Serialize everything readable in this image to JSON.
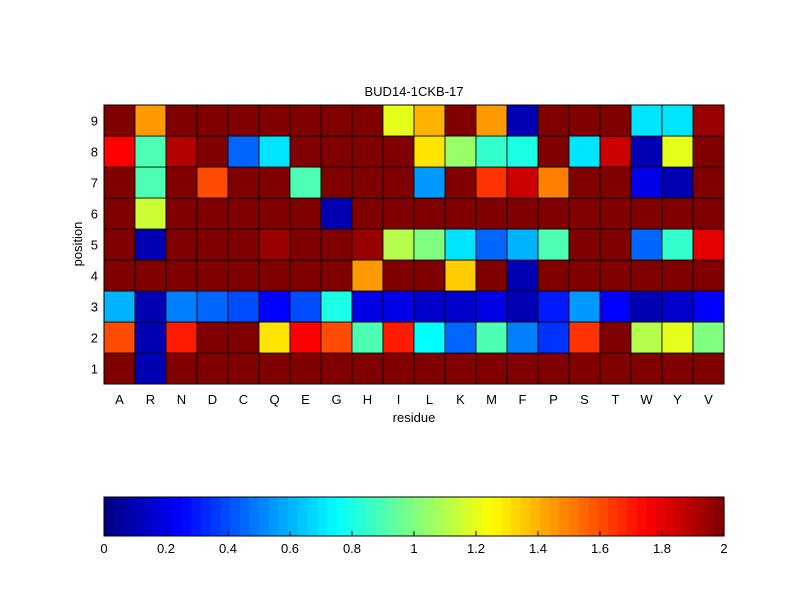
{
  "chart_data": {
    "type": "heatmap",
    "title": "BUD14-1CKB-17",
    "xlabel": "residue",
    "ylabel": "position",
    "x_categories": [
      "A",
      "R",
      "N",
      "D",
      "C",
      "Q",
      "E",
      "G",
      "H",
      "I",
      "L",
      "K",
      "M",
      "F",
      "P",
      "S",
      "T",
      "W",
      "Y",
      "V"
    ],
    "y_categories": [
      "1",
      "2",
      "3",
      "4",
      "5",
      "6",
      "7",
      "8",
      "9"
    ],
    "colormap": "jet",
    "clim": [
      0,
      2
    ],
    "grid": true,
    "colorbar": {
      "location": "bottom",
      "ticks": [
        0,
        0.2,
        0.4,
        0.6,
        0.8,
        1,
        1.2,
        1.4,
        1.6,
        1.8,
        2
      ],
      "tick_labels": [
        "0",
        "0.2",
        "0.4",
        "0.6",
        "0.8",
        "1",
        "1.2",
        "1.4",
        "1.6",
        "1.8",
        "2"
      ]
    },
    "values": [
      [
        2.0,
        0.1,
        2.0,
        2.0,
        2.0,
        2.0,
        2.0,
        2.0,
        2.0,
        2.0,
        2.0,
        2.0,
        2.0,
        2.0,
        2.0,
        2.0,
        2.0,
        2.0,
        2.0,
        2.0
      ],
      [
        1.6,
        0.1,
        1.7,
        2.0,
        2.0,
        1.3,
        1.75,
        1.6,
        0.9,
        1.7,
        0.75,
        0.45,
        0.9,
        0.5,
        0.35,
        1.65,
        2.0,
        1.1,
        1.2,
        1.0
      ],
      [
        0.6,
        0.1,
        0.5,
        0.45,
        0.4,
        0.25,
        0.4,
        0.8,
        0.2,
        0.2,
        0.15,
        0.15,
        0.2,
        0.1,
        0.3,
        0.55,
        0.25,
        0.1,
        0.15,
        0.25
      ],
      [
        2.0,
        2.0,
        2.0,
        2.0,
        2.0,
        2.0,
        2.0,
        2.0,
        1.45,
        2.0,
        2.0,
        1.35,
        2.0,
        0.1,
        2.0,
        2.0,
        2.0,
        2.0,
        2.0,
        2.0
      ],
      [
        2.0,
        0.1,
        2.0,
        2.0,
        2.0,
        1.95,
        2.0,
        2.0,
        1.95,
        1.1,
        1.0,
        0.7,
        0.45,
        0.6,
        0.9,
        2.0,
        2.0,
        0.45,
        0.85,
        1.8
      ],
      [
        2.0,
        1.15,
        2.0,
        2.0,
        2.0,
        2.0,
        2.0,
        0.1,
        2.0,
        2.0,
        2.0,
        2.0,
        2.0,
        2.0,
        2.0,
        2.0,
        2.0,
        2.0,
        2.0,
        2.0
      ],
      [
        2.0,
        0.9,
        2.0,
        1.6,
        2.0,
        2.0,
        0.9,
        2.0,
        2.0,
        2.0,
        0.55,
        2.0,
        1.65,
        1.85,
        1.5,
        2.0,
        2.0,
        0.2,
        0.1,
        2.0
      ],
      [
        1.75,
        0.9,
        1.9,
        2.0,
        0.45,
        0.7,
        2.0,
        2.0,
        2.0,
        2.0,
        1.3,
        1.05,
        0.85,
        0.8,
        2.0,
        0.7,
        1.85,
        0.1,
        1.2,
        2.0
      ],
      [
        2.0,
        1.45,
        2.0,
        2.0,
        2.0,
        2.0,
        2.0,
        2.0,
        2.0,
        1.2,
        1.4,
        2.0,
        1.45,
        0.1,
        2.0,
        2.0,
        2.0,
        0.7,
        0.7,
        1.95
      ]
    ]
  }
}
